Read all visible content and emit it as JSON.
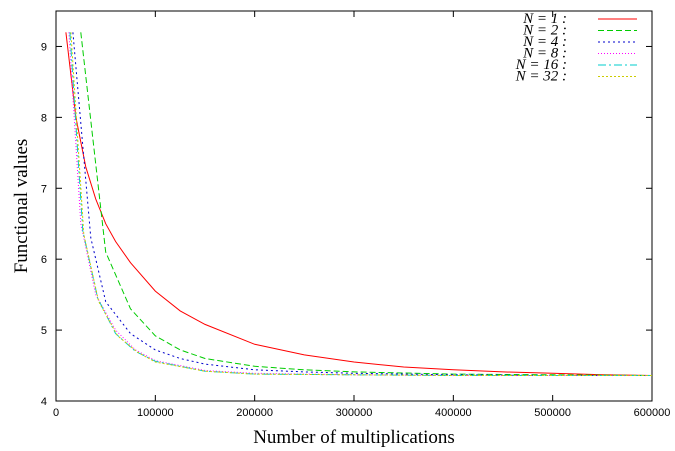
{
  "chart_data": {
    "type": "line",
    "title": "",
    "xlabel": "Number of multiplications",
    "ylabel": "Functional values",
    "xlim": [
      0,
      600000
    ],
    "ylim": [
      4,
      9.5
    ],
    "xticks": [
      "0",
      "100000",
      "200000",
      "300000",
      "400000",
      "500000",
      "600000"
    ],
    "yticks": [
      "4",
      "5",
      "6",
      "7",
      "8",
      "9"
    ],
    "grid": false,
    "legend_position": "top-right",
    "series": [
      {
        "name": "N = 1 :",
        "color": "#ff0000",
        "dash": "",
        "x": [
          10000,
          20000,
          30000,
          40000,
          50000,
          60000,
          75000,
          100000,
          125000,
          150000,
          200000,
          250000,
          300000,
          350000,
          400000,
          450000,
          500000,
          550000,
          600000
        ],
        "y": [
          9.2,
          8.0,
          7.3,
          6.85,
          6.5,
          6.25,
          5.95,
          5.55,
          5.27,
          5.08,
          4.8,
          4.65,
          4.55,
          4.48,
          4.44,
          4.41,
          4.39,
          4.37,
          4.36
        ]
      },
      {
        "name": "N = 2 :",
        "color": "#00cc00",
        "dash": "6,3",
        "x": [
          25000,
          50000,
          75000,
          100000,
          125000,
          150000,
          200000,
          250000,
          300000,
          400000,
          500000,
          600000
        ],
        "y": [
          9.2,
          6.1,
          5.3,
          4.92,
          4.72,
          4.6,
          4.49,
          4.44,
          4.41,
          4.38,
          4.37,
          4.36
        ]
      },
      {
        "name": "N = 4 :",
        "color": "#0000cc",
        "dash": "2,3",
        "x": [
          17000,
          35000,
          50000,
          75000,
          100000,
          125000,
          150000,
          200000,
          250000,
          300000,
          400000,
          500000,
          600000
        ],
        "y": [
          9.2,
          6.3,
          5.4,
          4.95,
          4.72,
          4.6,
          4.52,
          4.44,
          4.41,
          4.39,
          4.37,
          4.36,
          4.36
        ]
      },
      {
        "name": "N = 8 :",
        "color": "#ff00ff",
        "dash": "1,2",
        "x": [
          13000,
          25000,
          40000,
          60000,
          80000,
          100000,
          150000,
          200000,
          300000,
          400000,
          500000,
          600000
        ],
        "y": [
          9.2,
          6.5,
          5.5,
          5.0,
          4.72,
          4.57,
          4.43,
          4.39,
          4.37,
          4.36,
          4.36,
          4.36
        ]
      },
      {
        "name": "N = 16 :",
        "color": "#00cccc",
        "dash": "8,3,2,3",
        "x": [
          14000,
          27000,
          42000,
          60000,
          80000,
          100000,
          150000,
          200000,
          300000,
          400000,
          500000,
          600000
        ],
        "y": [
          9.2,
          6.4,
          5.45,
          4.95,
          4.7,
          4.56,
          4.42,
          4.38,
          4.37,
          4.36,
          4.36,
          4.36
        ]
      },
      {
        "name": "N = 32 :",
        "color": "#cccc00",
        "dash": "2,2",
        "x": [
          15000,
          28000,
          43000,
          62000,
          82000,
          100000,
          150000,
          200000,
          300000,
          400000,
          500000,
          600000
        ],
        "y": [
          9.2,
          6.35,
          5.4,
          4.92,
          4.69,
          4.55,
          4.42,
          4.38,
          4.37,
          4.36,
          4.36,
          4.36
        ]
      }
    ]
  }
}
